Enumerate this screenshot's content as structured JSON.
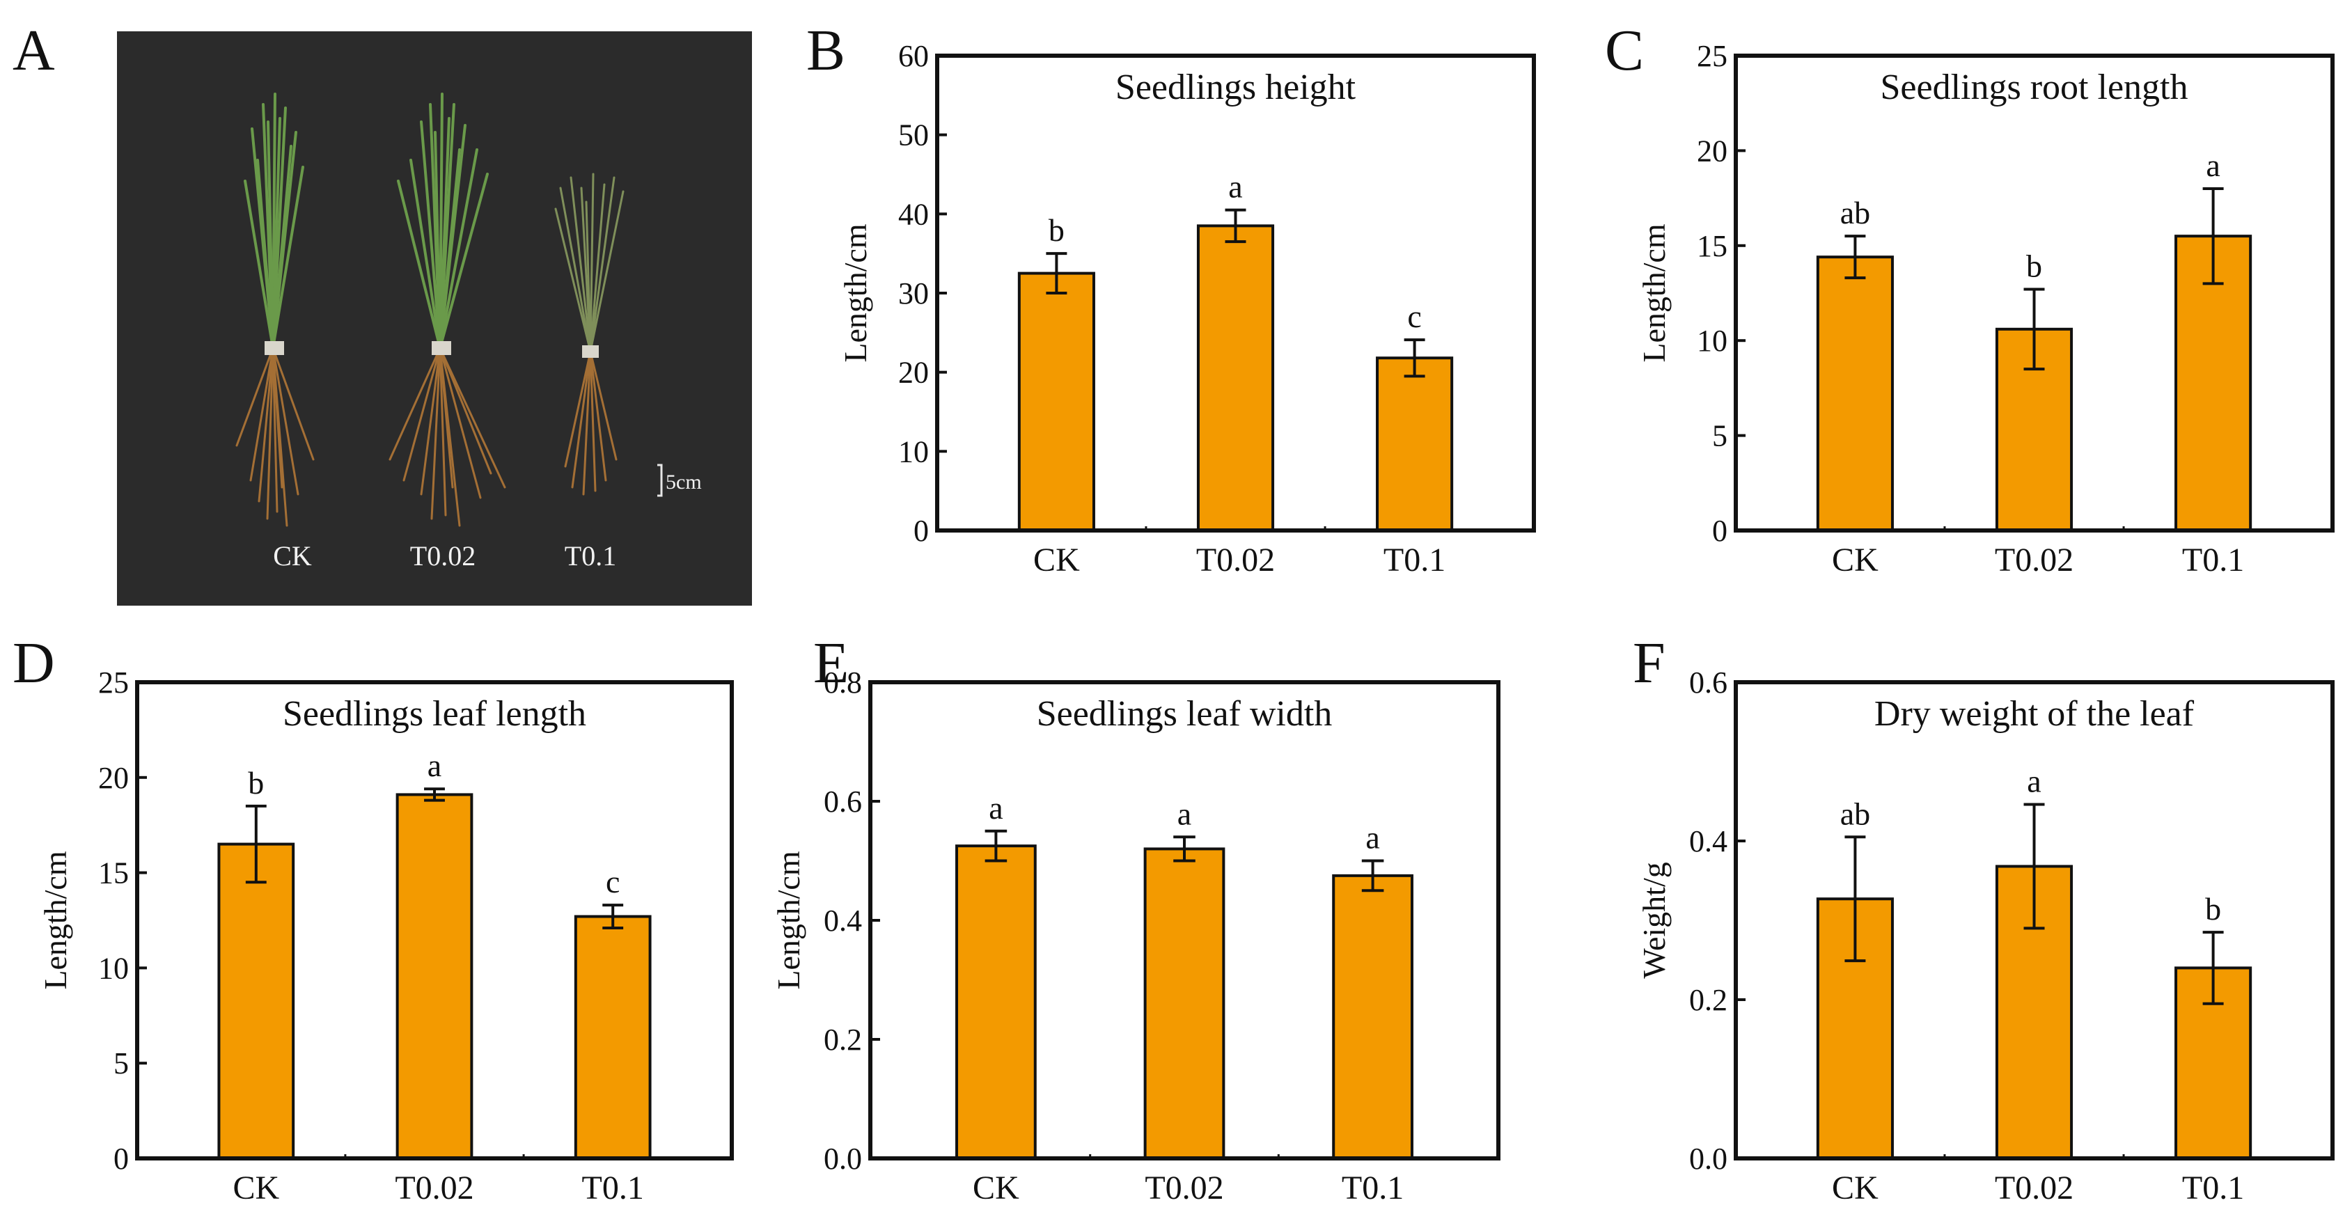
{
  "panels": [
    {
      "letter": "A"
    },
    {
      "letter": "B"
    },
    {
      "letter": "C"
    },
    {
      "letter": "D"
    },
    {
      "letter": "E"
    },
    {
      "letter": "F"
    }
  ],
  "photo": {
    "labels": [
      "CK",
      "T0.02",
      "T0.1"
    ],
    "scale_label": "5cm",
    "background": "#2b2b2b"
  },
  "colors": {
    "bar": "#f39a00",
    "bar_stroke": "#111111",
    "frame": "#111111"
  },
  "chart_data": [
    {
      "panel": "B",
      "type": "bar",
      "title": "Seedlings height",
      "ylabel": "Length/cm",
      "xlabel": "",
      "categories": [
        "CK",
        "T0.02",
        "T0.1"
      ],
      "values": [
        32.5,
        38.5,
        21.8
      ],
      "errors": [
        2.5,
        2.0,
        2.3
      ],
      "significance": [
        "b",
        "a",
        "c"
      ],
      "ylim": [
        0,
        60
      ],
      "yticks": [
        0,
        10,
        20,
        30,
        40,
        50,
        60
      ],
      "ytick_labels": [
        "0",
        "10",
        "20",
        "30",
        "40",
        "50",
        "60"
      ]
    },
    {
      "panel": "C",
      "type": "bar",
      "title": "Seedlings root length",
      "ylabel": "Length/cm",
      "xlabel": "",
      "categories": [
        "CK",
        "T0.02",
        "T0.1"
      ],
      "values": [
        14.4,
        10.6,
        15.5
      ],
      "errors": [
        1.1,
        2.1,
        2.5
      ],
      "significance": [
        "ab",
        "b",
        "a"
      ],
      "ylim": [
        0,
        25
      ],
      "yticks": [
        0,
        5,
        10,
        15,
        20,
        25
      ],
      "ytick_labels": [
        "0",
        "5",
        "10",
        "15",
        "20",
        "25"
      ]
    },
    {
      "panel": "D",
      "type": "bar",
      "title": "Seedlings leaf length",
      "ylabel": "Length/cm",
      "xlabel": "",
      "categories": [
        "CK",
        "T0.02",
        "T0.1"
      ],
      "values": [
        16.5,
        19.1,
        12.7
      ],
      "errors": [
        2.0,
        0.3,
        0.6
      ],
      "significance": [
        "b",
        "a",
        "c"
      ],
      "ylim": [
        0,
        25
      ],
      "yticks": [
        0,
        5,
        10,
        15,
        20,
        25
      ],
      "ytick_labels": [
        "0",
        "5",
        "10",
        "15",
        "20",
        "25"
      ]
    },
    {
      "panel": "E",
      "type": "bar",
      "title": "Seedlings leaf width",
      "ylabel": "Length/cm",
      "xlabel": "",
      "categories": [
        "CK",
        "T0.02",
        "T0.1"
      ],
      "values": [
        0.525,
        0.52,
        0.475
      ],
      "errors": [
        0.025,
        0.02,
        0.025
      ],
      "significance": [
        "a",
        "a",
        "a"
      ],
      "ylim": [
        0,
        0.8
      ],
      "yticks": [
        0,
        0.2,
        0.4,
        0.6,
        0.8
      ],
      "ytick_labels": [
        "0.0",
        "0.2",
        "0.4",
        "0.6",
        "0.8"
      ]
    },
    {
      "panel": "F",
      "type": "bar",
      "title": "Dry weight of the leaf",
      "ylabel": "Weight/g",
      "xlabel": "",
      "categories": [
        "CK",
        "T0.02",
        "T0.1"
      ],
      "values": [
        0.327,
        0.368,
        0.24
      ],
      "errors": [
        0.078,
        0.078,
        0.045
      ],
      "significance": [
        "ab",
        "a",
        "b"
      ],
      "ylim": [
        0,
        0.6
      ],
      "yticks": [
        0,
        0.2,
        0.4,
        0.6
      ],
      "ytick_labels": [
        "0.0",
        "0.2",
        "0.4",
        "0.6"
      ]
    }
  ]
}
